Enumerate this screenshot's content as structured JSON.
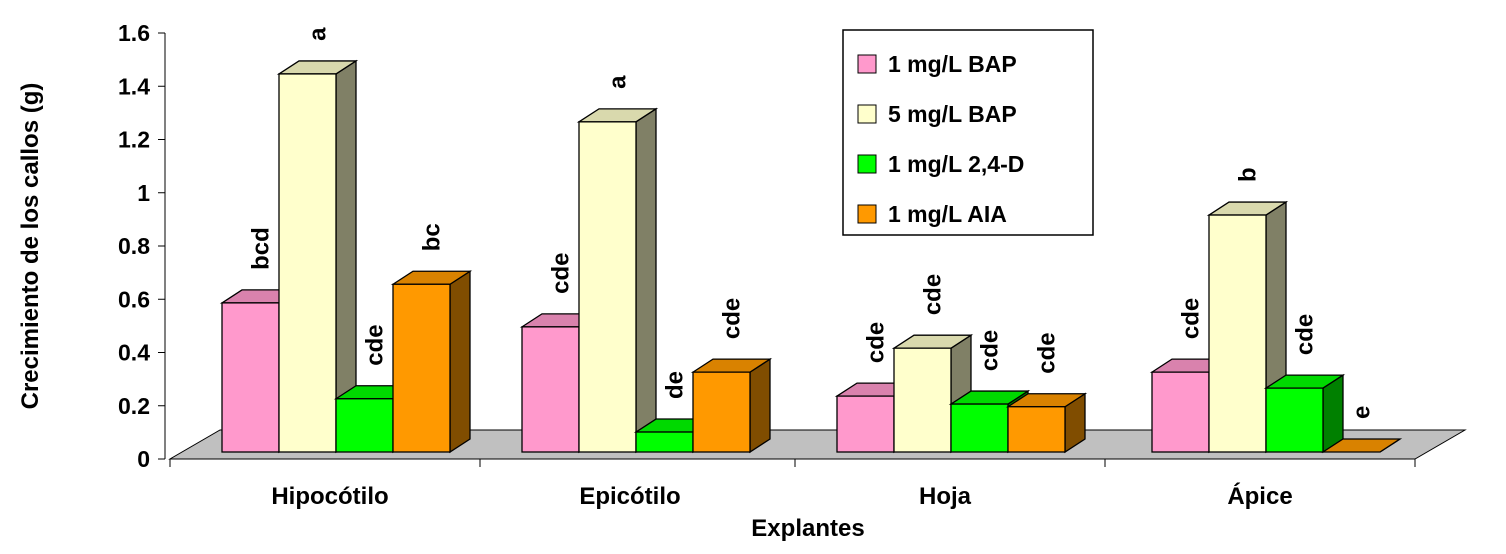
{
  "chart_data": {
    "type": "bar",
    "title": "",
    "xlabel": "Explantes",
    "ylabel": "Crecimiento de los callos (g)",
    "ylim": [
      0,
      1.6
    ],
    "yticks": [
      "0",
      "0.2",
      "0.4",
      "0.6",
      "0.8",
      "1",
      "1.2",
      "1.4",
      "1.6"
    ],
    "categories": [
      "Hipocótilo",
      "Epicótilo",
      "Hoja",
      "Ápice"
    ],
    "legend_position": "top-right",
    "grid": false,
    "style": "3d",
    "series": [
      {
        "name": "1 mg/L BAP",
        "color": "#ff99cc",
        "values": [
          0.56,
          0.47,
          0.21,
          0.3
        ],
        "letters": [
          "bcd",
          "cde",
          "cde",
          "cde"
        ]
      },
      {
        "name": "5 mg/L BAP",
        "color": "#ffffcc",
        "values": [
          1.42,
          1.24,
          0.39,
          0.89
        ],
        "letters": [
          "a",
          "a",
          "cde",
          "b"
        ]
      },
      {
        "name": "1 mg/L 2,4-D",
        "color": "#00ff00",
        "values": [
          0.2,
          0.075,
          0.18,
          0.24
        ],
        "letters": [
          "cde",
          "de",
          "cde",
          "cde"
        ]
      },
      {
        "name": "1 mg/L AIA",
        "color": "#ff9900",
        "values": [
          0.63,
          0.3,
          0.17,
          0.0
        ],
        "letters": [
          "bc",
          "cde",
          "cde",
          "e"
        ]
      }
    ]
  }
}
